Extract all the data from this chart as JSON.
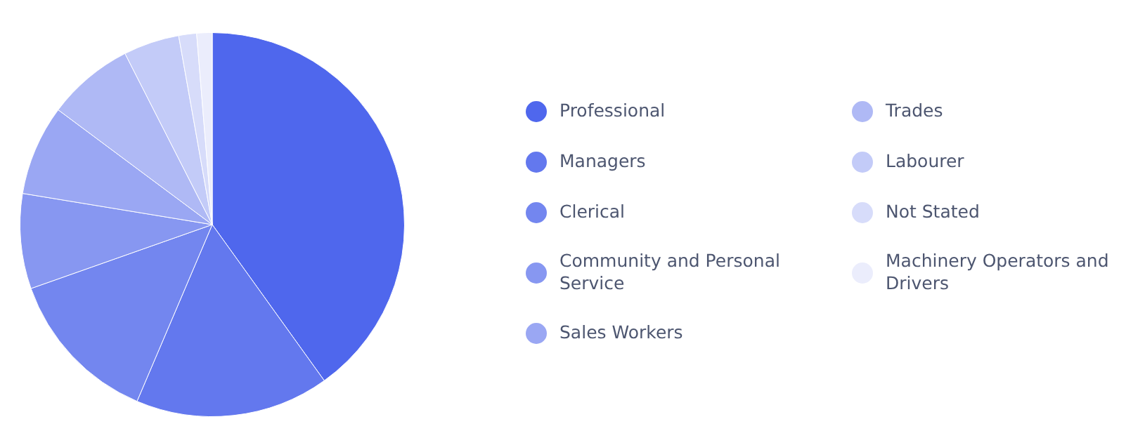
{
  "chart_data": {
    "type": "pie",
    "categories": [
      "Professional",
      "Managers",
      "Clerical",
      "Community and Personal Service",
      "Sales Workers",
      "Trades",
      "Labourer",
      "Not Stated",
      "Machinery Operators and Drivers"
    ],
    "values": [
      40.1,
      16.3,
      13.2,
      8.0,
      7.6,
      7.3,
      4.7,
      1.5,
      1.3
    ],
    "colors": [
      "#4f67ed",
      "#6378ee",
      "#7386ef",
      "#8797f1",
      "#9aa7f3",
      "#afb9f5",
      "#c3cbf8",
      "#d7dcfa",
      "#ebedfc"
    ],
    "legend": "right"
  }
}
